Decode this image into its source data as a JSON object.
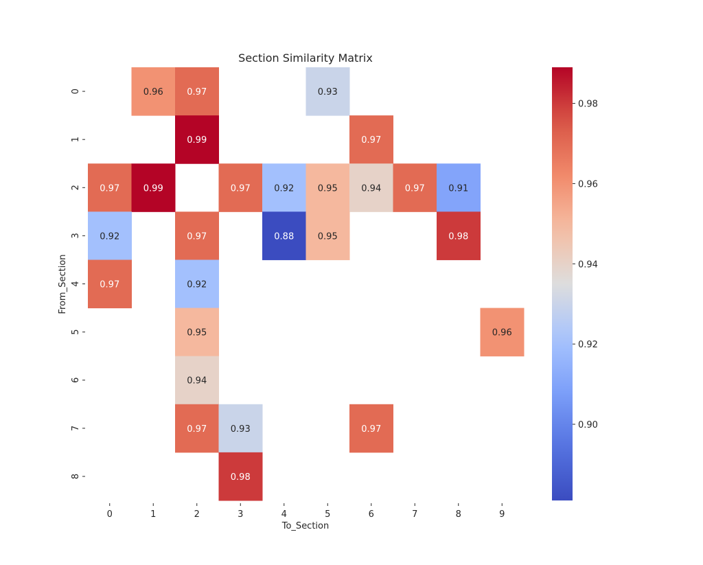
{
  "chart_data": {
    "type": "heatmap",
    "title": "Section Similarity Matrix",
    "xlabel": "To_Section",
    "ylabel": "From_Section",
    "x_categories": [
      "0",
      "1",
      "2",
      "3",
      "4",
      "5",
      "6",
      "7",
      "8",
      "9"
    ],
    "y_categories": [
      "0",
      "1",
      "2",
      "3",
      "4",
      "5",
      "6",
      "7",
      "8"
    ],
    "colormap": "coolwarm",
    "vmin": 0.881,
    "vmax": 0.989,
    "colorbar_ticks": [
      "0.90",
      "0.92",
      "0.94",
      "0.96",
      "0.98"
    ],
    "cells": [
      {
        "from": 0,
        "to": 1,
        "value": 0.96
      },
      {
        "from": 0,
        "to": 2,
        "value": 0.97
      },
      {
        "from": 0,
        "to": 5,
        "value": 0.93
      },
      {
        "from": 1,
        "to": 2,
        "value": 0.99
      },
      {
        "from": 1,
        "to": 6,
        "value": 0.97
      },
      {
        "from": 2,
        "to": 0,
        "value": 0.97
      },
      {
        "from": 2,
        "to": 1,
        "value": 0.99
      },
      {
        "from": 2,
        "to": 3,
        "value": 0.97
      },
      {
        "from": 2,
        "to": 4,
        "value": 0.92
      },
      {
        "from": 2,
        "to": 5,
        "value": 0.95
      },
      {
        "from": 2,
        "to": 6,
        "value": 0.94
      },
      {
        "from": 2,
        "to": 7,
        "value": 0.97
      },
      {
        "from": 2,
        "to": 8,
        "value": 0.91
      },
      {
        "from": 3,
        "to": 0,
        "value": 0.92
      },
      {
        "from": 3,
        "to": 2,
        "value": 0.97
      },
      {
        "from": 3,
        "to": 4,
        "value": 0.88
      },
      {
        "from": 3,
        "to": 5,
        "value": 0.95
      },
      {
        "from": 3,
        "to": 8,
        "value": 0.98
      },
      {
        "from": 4,
        "to": 0,
        "value": 0.97
      },
      {
        "from": 4,
        "to": 2,
        "value": 0.92
      },
      {
        "from": 5,
        "to": 2,
        "value": 0.95
      },
      {
        "from": 5,
        "to": 9,
        "value": 0.96
      },
      {
        "from": 6,
        "to": 2,
        "value": 0.94
      },
      {
        "from": 7,
        "to": 2,
        "value": 0.97
      },
      {
        "from": 7,
        "to": 3,
        "value": 0.93
      },
      {
        "from": 7,
        "to": 6,
        "value": 0.97
      },
      {
        "from": 8,
        "to": 3,
        "value": 0.98
      }
    ],
    "grid": false,
    "legend": "colorbar-right"
  }
}
